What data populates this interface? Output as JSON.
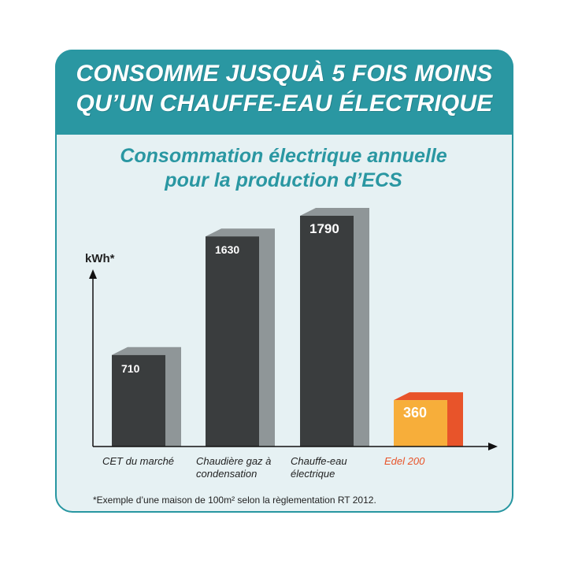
{
  "banner": {
    "line1": "CONSOMME JUSQUÀ 5 FOIS MOINS",
    "line2": "QU’UN CHAUFFE-EAU ÉLECTRIQUE"
  },
  "colors": {
    "accent": "#2a97a2",
    "bar_dark": "#3a3d3e",
    "bar_shadow": "#8f9698",
    "highlight_front": "#f7ae3a",
    "highlight_side": "#e8542a",
    "highlight_label": "#e8542a"
  },
  "chart_data": {
    "type": "bar",
    "title": "Consommation électrique annuelle pour la production d’ECS",
    "title_lines": [
      "Consommation électrique annuelle",
      "pour la production d’ECS"
    ],
    "ylabel": "kWh*",
    "categories": [
      [
        "CET du marché"
      ],
      [
        "Chaudière gaz à",
        "condensation"
      ],
      [
        "Chauffe-eau",
        "électrique"
      ],
      [
        "Edel 200"
      ]
    ],
    "values": [
      710,
      1630,
      1790,
      360
    ],
    "value_labels": [
      "710",
      "1630",
      "1790",
      "360"
    ],
    "highlight_index": 3,
    "ylim": [
      0,
      2000
    ],
    "grid": false
  },
  "footnote": "*Exemple d’une maison de 100m² selon la règlementation RT 2012."
}
